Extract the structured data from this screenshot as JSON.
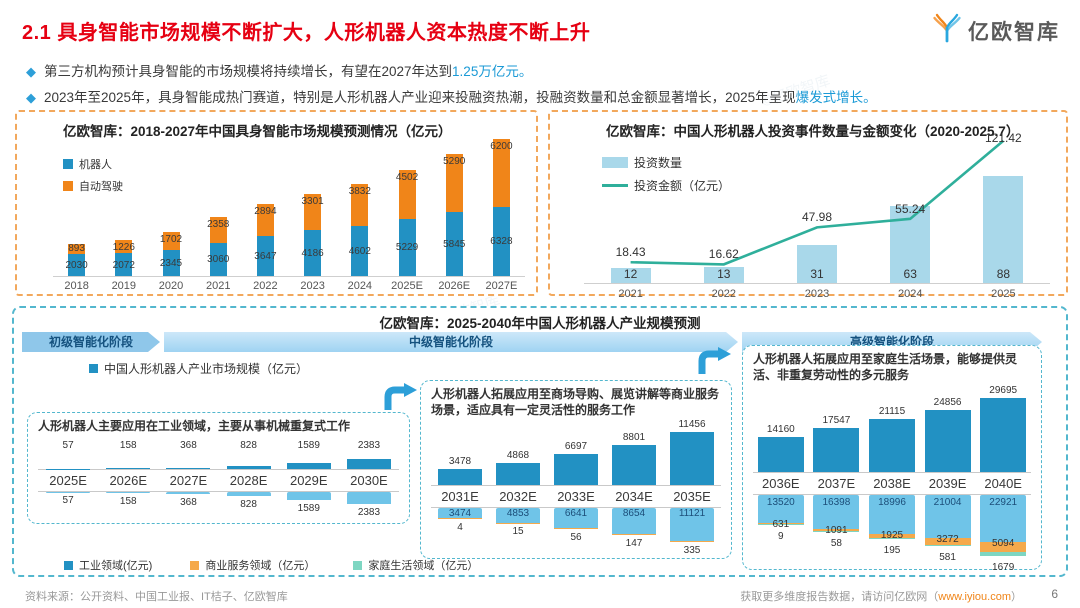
{
  "header": {
    "title": "2.1 具身智能市场规模不断扩大，人形机器人资本热度不断上升",
    "logo_text": "亿欧智库"
  },
  "bullets": [
    {
      "pre": "第三方机构预计具身智能的市场规模将持续增长，有望在2027年达到",
      "highlight": "1.25万亿元。"
    },
    {
      "pre": "2023年至2025年，具身智能成热门赛道，特别是人形机器人产业迎来投融资热潮，投融资数量和总金额显著增长，2025年呈现",
      "highlight": "爆发式增长。"
    }
  ],
  "watermark": "©亿欧智库",
  "chart_data": [
    {
      "type": "bar",
      "stacked": true,
      "title": "亿欧智库：2018-2027年中国具身智能市场规模预测情况（亿元）",
      "categories": [
        "2018",
        "2019",
        "2020",
        "2021",
        "2022",
        "2023",
        "2024",
        "2025E",
        "2026E",
        "2027E"
      ],
      "series": [
        {
          "name": "机器人",
          "color": "#2291C3",
          "values": [
            2030,
            2072,
            2345,
            3060,
            3647,
            4186,
            4602,
            5229,
            5845,
            6328
          ]
        },
        {
          "name": "自动驾驶",
          "color": "#F08519",
          "values": [
            893,
            1226,
            1702,
            2358,
            2894,
            3301,
            3832,
            4502,
            5290,
            6200
          ]
        }
      ],
      "legend_position": "top-left",
      "grid": false
    },
    {
      "type": "bar+line",
      "title": "亿欧智库：中国人形机器人投资事件数量与金额变化（2020-2025.7）",
      "categories": [
        "2021",
        "2022",
        "2023",
        "2024",
        "2025"
      ],
      "series": [
        {
          "name": "投资数量",
          "type": "bar",
          "color": "#A9D8EA",
          "values": [
            12,
            13,
            31,
            63,
            88
          ]
        },
        {
          "name": "投资金额（亿元）",
          "type": "line",
          "color": "#2FAF9B",
          "values": [
            18.43,
            16.62,
            47.98,
            55.24,
            121.42
          ]
        }
      ],
      "legend_position": "top-left",
      "grid": false
    },
    {
      "type": "bar",
      "title": "亿欧智库：2025-2040年中国人形机器人产业规模预测",
      "stages": [
        "初级智能化阶段",
        "中级智能化阶段",
        "高级智能化阶段"
      ],
      "legend_total": "中国人形机器人产业市场规模（亿元）",
      "sub_charts": [
        {
          "note": "人形机器人主要应用在工业领域，主要从事机械重复式工作",
          "categories": [
            "2025E",
            "2026E",
            "2027E",
            "2028E",
            "2029E",
            "2030E"
          ],
          "totals": [
            57,
            158,
            368,
            828,
            1589,
            2383
          ],
          "industrial": [
            57,
            158,
            368,
            828,
            1589,
            2383
          ]
        },
        {
          "note": "人形机器人拓展应用至商场导购、展览讲解等商业服务场景，适应具有一定灵活性的服务工作",
          "categories": [
            "2031E",
            "2032E",
            "2033E",
            "2034E",
            "2035E"
          ],
          "totals": [
            3478,
            4868,
            6697,
            8801,
            11456
          ],
          "industrial": [
            3474,
            4853,
            6641,
            8654,
            11121
          ],
          "commercial": [
            4,
            15,
            56,
            147,
            335
          ]
        },
        {
          "note": "人形机器人拓展应用至家庭生活场景，能够提供灵活、非重复劳动性的多元服务",
          "categories": [
            "2036E",
            "2037E",
            "2038E",
            "2039E",
            "2040E"
          ],
          "totals": [
            14160,
            17547,
            21115,
            24856,
            29695
          ],
          "industrial": [
            13520,
            16398,
            18996,
            21004,
            22921
          ],
          "commercial": [
            631,
            1091,
            1925,
            3272,
            5094
          ],
          "household": [
            9,
            58,
            195,
            581,
            1679
          ]
        }
      ],
      "bottom_legend": [
        "工业领域(亿元)",
        "商业服务领域（亿元）",
        "家庭生活领域（亿元）"
      ]
    }
  ],
  "colors": {
    "title_red": "#E60012",
    "accent_blue": "#1B9AD6",
    "robot_blue": "#2291C3",
    "auto_orange": "#F08519",
    "invest_bar": "#A9D8EA",
    "invest_line": "#2FAF9B",
    "industrial_light_blue": "#6FC4E8",
    "commercial_orange": "#F5A94B",
    "household_teal": "#7ED6C2",
    "top_panel_border": "#F2A85C",
    "bottom_panel_border": "#53B7CE"
  },
  "footer": {
    "source": "资料来源：公开资料、中国工业报、IT桔子、亿欧智库",
    "right_pre": "获取更多维度报告数据，请访问亿欧网（",
    "link": "www.iyiou.com",
    "right_post": "）",
    "page_number": "6"
  }
}
